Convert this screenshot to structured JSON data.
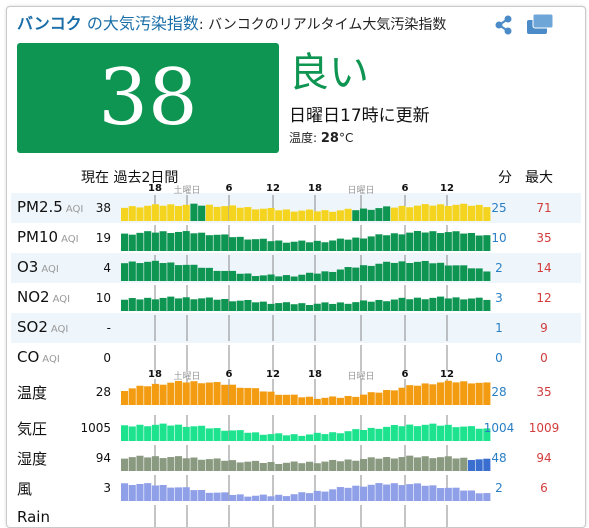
{
  "title": {
    "city": "バンコク",
    "index_label": " の大気汚染指数",
    "subtitle": ": バンコクのリアルタイム大気汚染指数"
  },
  "summary": {
    "aqi": "38",
    "quality": "良い",
    "updated": "日曜日17時に更新",
    "temp_label": "温度: ",
    "temp_value": "28",
    "temp_unit": "°C",
    "aqi_color": "#0f9552"
  },
  "table_header": {
    "now_past": "現在 過去2日間",
    "min": "分",
    "max": "最大"
  },
  "time_axis": [
    "18",
    "土曜日",
    "6",
    "12",
    "18",
    "日曜日",
    "6",
    "12"
  ],
  "rows": [
    {
      "name": "PM2.5",
      "unit": "AQI",
      "current": "38",
      "min": "25",
      "max": "71"
    },
    {
      "name": "PM10",
      "unit": "AQI",
      "current": "19",
      "min": "10",
      "max": "35"
    },
    {
      "name": "O3",
      "unit": "AQI",
      "current": "4",
      "min": "2",
      "max": "14"
    },
    {
      "name": "NO2",
      "unit": "AQI",
      "current": "10",
      "min": "3",
      "max": "12"
    },
    {
      "name": "SO2",
      "unit": "AQI",
      "current": "-",
      "min": "1",
      "max": "9"
    },
    {
      "name": "CO",
      "unit": "AQI",
      "current": "0",
      "min": "0",
      "max": "0"
    },
    {
      "name": "温度",
      "unit": "",
      "current": "28",
      "min": "28",
      "max": "35"
    },
    {
      "name": "気圧",
      "unit": "",
      "current": "1005",
      "min": "1004",
      "max": "1009"
    },
    {
      "name": "湿度",
      "unit": "",
      "current": "94",
      "min": "48",
      "max": "94"
    },
    {
      "name": "風",
      "unit": "",
      "current": "3",
      "min": "2",
      "max": "6"
    },
    {
      "name": "Rain",
      "unit": "",
      "current": "",
      "min": "",
      "max": ""
    }
  ],
  "colors": {
    "good": "#0f9552",
    "moderate": "#f5d41f",
    "temperature": "#f39c12",
    "pressure": "#1de38f",
    "humidity": "#8a9a80",
    "humidity_last": "#3a6fd0",
    "wind": "#8fa0e8",
    "min_text": "#2a7fc4",
    "max_text": "#d23c3c"
  },
  "icons": [
    "share-icon",
    "multi-screen-icon"
  ]
}
